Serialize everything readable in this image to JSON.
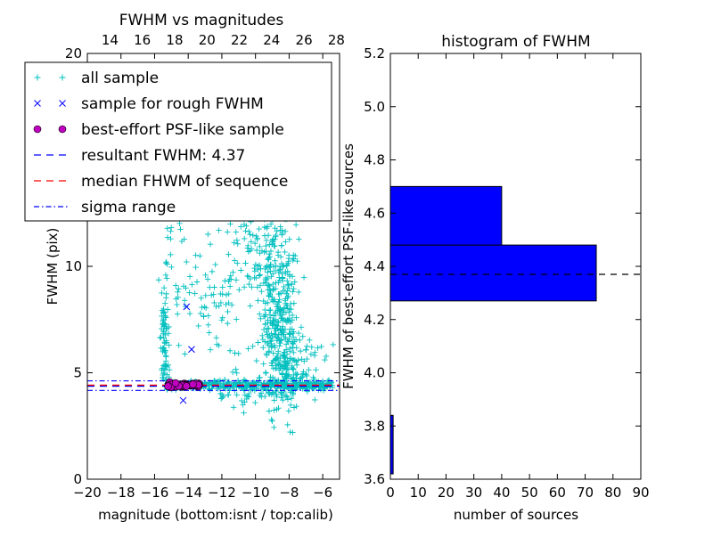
{
  "chart_data": [
    {
      "type": "scatter",
      "title": "FWHM vs magnitudes",
      "xlabel": "magnitude (bottom:isnt / top:calib)",
      "ylabel": "FWHM (pix)",
      "xlim": [
        -20,
        -5
      ],
      "ylim": [
        0,
        20
      ],
      "xticks": [
        -20,
        -18,
        -16,
        -14,
        -12,
        -10,
        -8,
        -6
      ],
      "yticks": [
        0,
        5,
        10
      ],
      "top_xlim": [
        12.6,
        28.2
      ],
      "top_xticks": [
        14,
        16,
        18,
        20,
        22,
        24,
        26,
        28
      ],
      "legend_placement": "top-left",
      "legend": [
        {
          "label": "all sample",
          "marker": "plus",
          "color": "#00bfbf"
        },
        {
          "label": "sample for rough FWHM",
          "marker": "x",
          "color": "#0000ff"
        },
        {
          "label": "best-effort PSF-like sample",
          "marker": "circle",
          "color": "#bf00bf"
        },
        {
          "label": "resultant FWHM: 4.37",
          "marker": "dashed",
          "color": "#0000ff"
        },
        {
          "label": "median FHWM of sequence",
          "marker": "dashed",
          "color": "#ff0000"
        },
        {
          "label": "sigma range",
          "marker": "dashdot",
          "color": "#0000ff"
        }
      ],
      "hlines": [
        {
          "y": 4.37,
          "style": "dashed",
          "color": "#000000"
        },
        {
          "y": 4.37,
          "style": "dashed",
          "color": "#0000ff"
        },
        {
          "y": 4.42,
          "style": "dashed",
          "color": "#ff0000"
        },
        {
          "y": 4.62,
          "style": "dashdot",
          "color": "#0000ff"
        },
        {
          "y": 4.17,
          "style": "dashdot",
          "color": "#0000ff"
        }
      ],
      "rough_sample": [
        [
          -14.1,
          8.1
        ],
        [
          -13.8,
          6.1
        ],
        [
          -14.3,
          3.7
        ],
        [
          -14.5,
          4.4
        ],
        [
          -14.0,
          4.5
        ],
        [
          -13.6,
          4.3
        ]
      ]
    },
    {
      "type": "bar",
      "orientation": "horizontal",
      "title": "histogram of FWHM",
      "xlabel": "number of sources",
      "ylabel": "FWHM of best-effort PSF-like sources",
      "xlim": [
        0,
        90
      ],
      "ylim": [
        3.6,
        5.2
      ],
      "xticks": [
        0,
        10,
        20,
        30,
        40,
        50,
        60,
        70,
        80,
        90
      ],
      "yticks": [
        3.6,
        3.8,
        4.0,
        4.2,
        4.4,
        4.6,
        4.8,
        5.0,
        5.2
      ],
      "bins": [
        {
          "from": 3.62,
          "to": 3.84,
          "count": 1
        },
        {
          "from": 4.27,
          "to": 4.48,
          "count": 74
        },
        {
          "from": 4.48,
          "to": 4.7,
          "count": 40
        }
      ],
      "bar_color": "#0000ff",
      "hline": {
        "y": 4.37,
        "style": "dashed",
        "color": "#000000"
      }
    }
  ]
}
